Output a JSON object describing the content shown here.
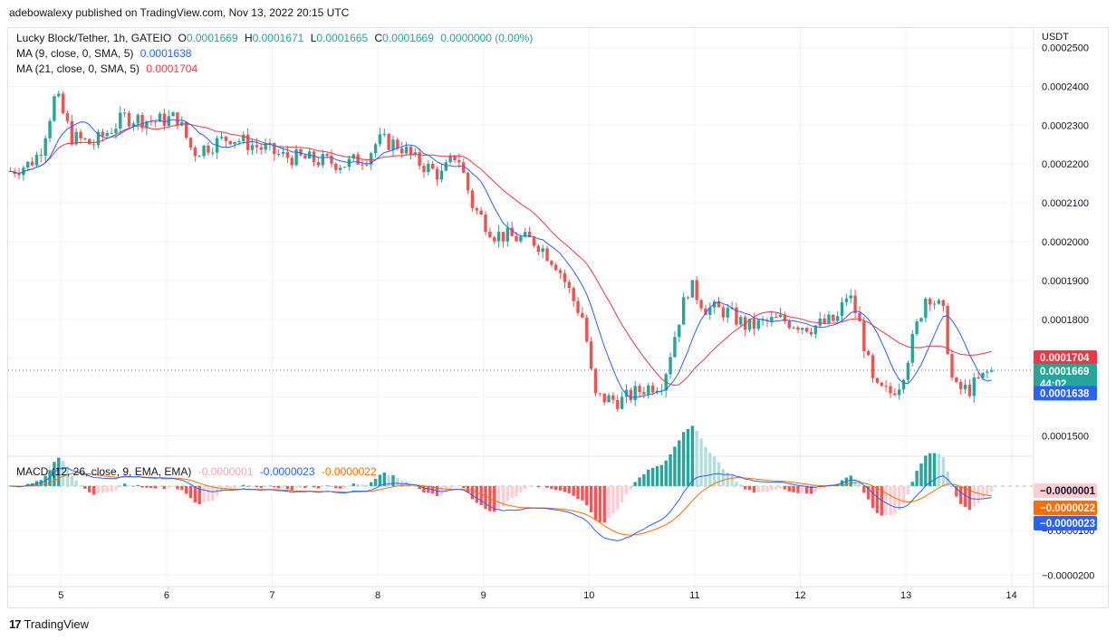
{
  "publisher_line": "adebowalexy published on TradingView.com, Nov 13, 2022 20:15 UTC",
  "footer": {
    "brand": "TradingView",
    "logo_glyph": "17"
  },
  "legend": {
    "symbol": "Lucky Block/Tether, 1h, GATEIO",
    "o_label": "O",
    "o_value": "0.0001669",
    "h_label": "H",
    "h_value": "0.0001671",
    "l_label": "L",
    "l_value": "0.0001665",
    "c_label": "C",
    "c_value": "0.0001669",
    "change": "0.0000000 (0.00%)",
    "ma9_label": "MA (9, close, 0, SMA, 5)",
    "ma9_value": "0.0001638",
    "ma21_label": "MA (21, close, 0, SMA, 5)",
    "ma21_value": "0.0001704",
    "macd_label": "MACD (12, 26, close, 9, EMA, EMA)",
    "macd_hist": "-0.0000001",
    "macd_line": "-0.0000023",
    "macd_signal": "-0.0000022"
  },
  "price_badges": {
    "ma21": "0.0001704",
    "last": "0.0001669",
    "countdown": "44:02",
    "ma9": "0.0001638",
    "macd_hist": "−0.0000001",
    "macd_signal": "−0.0000022",
    "macd_line": "−0.0000023"
  },
  "colors": {
    "up": "#26a69a",
    "down": "#ef5350",
    "ma9": "#2962ff",
    "ma21": "#f23645",
    "macd": "#2962ff",
    "signal": "#ff6d00",
    "hist_up_strong": "#26a69a",
    "hist_up_weak": "#b2dfdb",
    "hist_down_strong": "#ff5252",
    "hist_down_weak": "#ffcdd2",
    "grid": "#f0f3fa",
    "text": "#131722"
  },
  "chart_data": [
    {
      "type": "candlestick",
      "title": "Lucky Block/Tether, 1h, GATEIO",
      "currency_label": "USDT",
      "y_ticks": [
        "0.0001500",
        "0.0001600",
        "0.0001700",
        "0.0001800",
        "0.0001900",
        "0.0002000",
        "0.0002100",
        "0.0002200",
        "0.0002300",
        "0.0002400",
        "0.0002500"
      ],
      "ylim": [
        0.000145,
        0.000255
      ],
      "x_ticks": [
        "5",
        "6",
        "7",
        "8",
        "9",
        "10",
        "11",
        "12",
        "13",
        "14"
      ],
      "x_tick_days": [
        5,
        6,
        7,
        8,
        9,
        10,
        11,
        12,
        13,
        14
      ],
      "xlim_days": [
        4.5,
        14.2
      ],
      "close_anchors_day": [
        4.5,
        4.7,
        4.8,
        4.95,
        5.1,
        5.3,
        5.6,
        5.9,
        6.1,
        6.25,
        6.6,
        6.9,
        7.1,
        7.4,
        7.7,
        7.9,
        8.0,
        8.2,
        8.35,
        8.6,
        8.75,
        8.9,
        9.1,
        9.3,
        9.5,
        9.7,
        9.85,
        9.95,
        10.05,
        10.3,
        10.5,
        10.7,
        10.85,
        10.95,
        11.1,
        11.3,
        11.5,
        11.8,
        12.1,
        12.35,
        12.45,
        12.55,
        12.7,
        12.85,
        12.95,
        13.1,
        13.2,
        13.35,
        13.45,
        13.6,
        13.8
      ],
      "close_anchors_price": [
        0.000218,
        0.00022,
        0.000223,
        0.000238,
        0.000227,
        0.000225,
        0.000232,
        0.000231,
        0.000232,
        0.000223,
        0.000227,
        0.000224,
        0.000222,
        0.000221,
        0.00022,
        0.000222,
        0.000226,
        0.000225,
        0.000221,
        0.000217,
        0.000223,
        0.000209,
        0.000202,
        0.000201,
        0.0002,
        0.000194,
        0.000185,
        0.00018,
        0.00016,
        0.000159,
        0.000162,
        0.000164,
        0.00018,
        0.000189,
        0.000183,
        0.000182,
        0.000178,
        0.00018,
        0.000178,
        0.00018,
        0.000187,
        0.00018,
        0.000162,
        0.000161,
        0.000164,
        0.000178,
        0.000187,
        0.000182,
        0.000162,
        0.000162,
        0.0001669
      ],
      "ma9_last": 0.0001638,
      "ma21_last": 0.0001704,
      "last_price": 0.0001669
    },
    {
      "type": "line",
      "title": "MACD (12, 26, close, 9, EMA, EMA)",
      "y_ticks": [
        "−0.0000100",
        "−0.0000200"
      ],
      "y_tick_values": [
        -1e-05,
        -2e-05
      ],
      "ylim": [
        -2.3e-05,
        6.5e-06
      ],
      "series": [
        {
          "name": "MACD",
          "values": []
        },
        {
          "name": "Signal",
          "values": []
        },
        {
          "name": "Histogram",
          "values": []
        }
      ]
    }
  ]
}
